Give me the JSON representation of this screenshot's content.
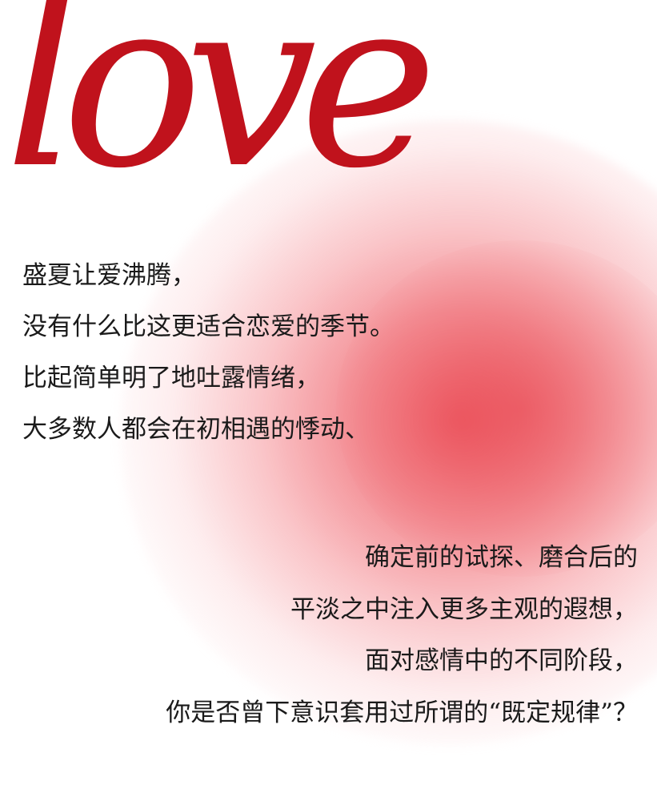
{
  "headline": "love",
  "colors": {
    "headline": "#c0121c",
    "glow": "#ec4e58",
    "text": "#1a1a1a",
    "background": "#ffffff"
  },
  "intro_lines": [
    "盛夏让爱沸腾，",
    "没有什么比这更适合恋爱的季节。",
    "比起简单明了地吐露情绪，",
    "大多数人都会在初相遇的悸动、"
  ],
  "continuation_lines": [
    "确定前的试探、磨合后的",
    "平淡之中注入更多主观的遐想，",
    "面对感情中的不同阶段，",
    "你是否曾下意识套用过所谓的“既定规律”？"
  ]
}
